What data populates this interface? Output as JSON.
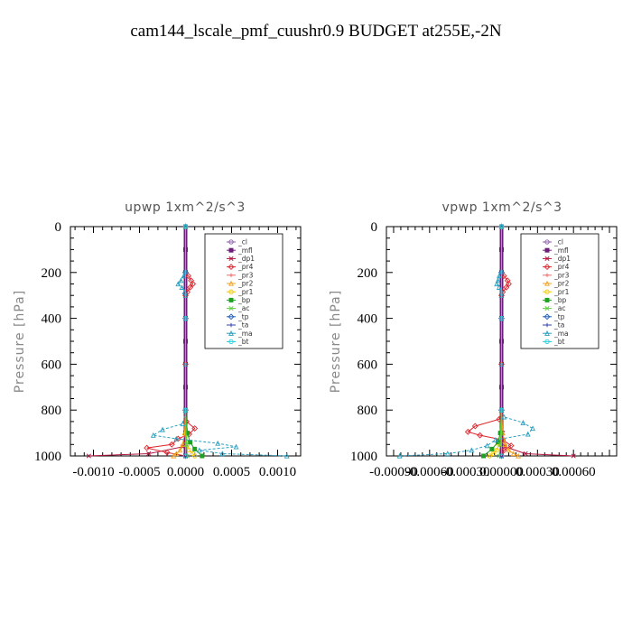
{
  "figure_title": "cam144_lscale_pmf_cuushr0.9  BUDGET at255E,-2N",
  "chart_data": [
    {
      "type": "line",
      "title": "upwp   1xm^2/s^3",
      "ylabel": "Pressure [hPa]",
      "xlabel": "",
      "xlim": [
        -0.00125,
        0.00125
      ],
      "ylim": [
        1000,
        0
      ],
      "xticks": [
        -0.001,
        -0.0005,
        0.0,
        0.0005,
        0.001
      ],
      "xtick_labels": [
        "-0.0010",
        "-0.0005",
        "0.0000",
        "0.0005",
        "0.0010"
      ],
      "yticks": [
        0,
        200,
        400,
        600,
        800,
        1000
      ],
      "ytick_labels": [
        "0",
        "200",
        "400",
        "600",
        "800",
        "1000"
      ],
      "legend_position": "upper-right",
      "series": [
        {
          "name": "_cl",
          "color": "#8a5fa8",
          "pressure": [
            0,
            200,
            400,
            600,
            800,
            1000
          ],
          "values": [
            0,
            0,
            0,
            0,
            0,
            0
          ]
        },
        {
          "name": "_mfl",
          "color": "#6b1e7a",
          "pressure": [
            0,
            100,
            200,
            300,
            400,
            500,
            600,
            700,
            800,
            900,
            1000
          ],
          "values": [
            0,
            0,
            0,
            0,
            0,
            0,
            0,
            0,
            0,
            0,
            0
          ]
        },
        {
          "name": "_dp1",
          "color": "#b0143c",
          "pressure": [
            0,
            200,
            400,
            600,
            800,
            900,
            960,
            990,
            1000
          ],
          "values": [
            0,
            0,
            0,
            0,
            0,
            2e-05,
            -3e-05,
            -0.0004,
            -0.00105
          ]
        },
        {
          "name": "_pr4",
          "color": "#e0242c",
          "pressure": [
            0,
            200,
            215,
            235,
            250,
            265,
            285,
            300,
            400,
            600,
            800,
            850,
            880,
            905,
            925,
            950,
            965,
            985,
            1000
          ],
          "values": [
            0,
            0,
            3e-05,
            6e-05,
            8e-05,
            5e-05,
            2e-05,
            0,
            0,
            0,
            0,
            1e-05,
            0.0001,
            4e-05,
            -8e-05,
            -0.00015,
            -0.00042,
            -0.0002,
            0
          ]
        },
        {
          "name": "_pr3",
          "color": "#f07070",
          "pressure": [
            0,
            400,
            800,
            1000
          ],
          "values": [
            0,
            0,
            0,
            0
          ]
        },
        {
          "name": "_pr2",
          "color": "#f5a020",
          "pressure": [
            0,
            800,
            900,
            950,
            975,
            990,
            1000
          ],
          "values": [
            0,
            0,
            -1e-05,
            -3e-05,
            -6e-05,
            -0.0001,
            -0.00013
          ]
        },
        {
          "name": "_pr1",
          "color": "#f5c800",
          "pressure": [
            0,
            800,
            900,
            950,
            975,
            990,
            1000
          ],
          "values": [
            0,
            0,
            1e-05,
            2e-05,
            4e-05,
            8e-05,
            0.0001
          ]
        },
        {
          "name": "_bp",
          "color": "#20a020",
          "pressure": [
            0,
            800,
            900,
            940,
            970,
            1000
          ],
          "values": [
            0,
            0,
            2e-05,
            5e-05,
            0.0001,
            0.00018
          ]
        },
        {
          "name": "_ac",
          "color": "#60d040",
          "pressure": [
            0,
            800,
            950,
            1000
          ],
          "values": [
            0,
            0,
            1e-05,
            2e-05
          ]
        },
        {
          "name": "_tp",
          "color": "#2060c0",
          "pressure": [
            0,
            200,
            400,
            800,
            1000
          ],
          "values": [
            0,
            0,
            0,
            0,
            0
          ]
        },
        {
          "name": "_ta",
          "color": "#3040b0",
          "pressure": [
            0,
            200,
            400,
            800,
            1000
          ],
          "values": [
            0,
            0,
            0,
            0,
            0
          ]
        },
        {
          "name": "_ma",
          "color": "#2aa0c0",
          "pressure": [
            0,
            195,
            215,
            235,
            250,
            265,
            285,
            300,
            400,
            600,
            800,
            860,
            885,
            910,
            925,
            945,
            960,
            975,
            990,
            1000
          ],
          "values": [
            0,
            0,
            -2e-05,
            -5e-05,
            -8e-05,
            -4e-05,
            -1e-05,
            0,
            0,
            0,
            0,
            -3e-05,
            -0.00025,
            -0.00035,
            -0.0001,
            0.00035,
            0.00055,
            0.00015,
            0.0004,
            0.0011
          ]
        },
        {
          "name": "_bt",
          "color": "#20d0e0",
          "pressure": [
            0,
            400,
            800,
            1000
          ],
          "values": [
            0,
            0,
            0,
            0
          ]
        }
      ]
    },
    {
      "type": "line",
      "title": "vpwp   1xm^2/s^3",
      "ylabel": "Pressure [hPa]",
      "xlabel": "",
      "xlim": [
        -0.00096,
        0.00096
      ],
      "ylim": [
        1000,
        0
      ],
      "xticks": [
        -0.0009,
        -0.0006,
        -0.0003,
        0.0,
        0.0003,
        0.0006
      ],
      "xtick_labels": [
        "-0.00090",
        "-0.00060",
        "-0.00030",
        "0.00000",
        "0.00030",
        "0.00060"
      ],
      "yticks": [
        0,
        200,
        400,
        600,
        800,
        1000
      ],
      "ytick_labels": [
        "0",
        "200",
        "400",
        "600",
        "800",
        "1000"
      ],
      "legend_position": "upper-right",
      "series": [
        {
          "name": "_cl",
          "color": "#8a5fa8",
          "pressure": [
            0,
            200,
            400,
            600,
            800,
            1000
          ],
          "values": [
            0,
            0,
            0,
            0,
            0,
            0
          ]
        },
        {
          "name": "_mfl",
          "color": "#6b1e7a",
          "pressure": [
            0,
            100,
            200,
            300,
            400,
            500,
            600,
            700,
            800,
            900,
            1000
          ],
          "values": [
            0,
            0,
            0,
            0,
            0,
            0,
            0,
            0,
            0,
            0,
            0
          ]
        },
        {
          "name": "_dp1",
          "color": "#b0143c",
          "pressure": [
            0,
            200,
            400,
            600,
            800,
            900,
            960,
            990,
            1000
          ],
          "values": [
            0,
            0,
            0,
            0,
            0,
            1e-05,
            3e-05,
            0.0002,
            0.0006
          ]
        },
        {
          "name": "_pr4",
          "color": "#e0242c",
          "pressure": [
            0,
            200,
            215,
            235,
            250,
            265,
            285,
            300,
            400,
            600,
            800,
            840,
            870,
            895,
            910,
            930,
            955,
            975,
            1000
          ],
          "values": [
            0,
            0,
            2e-05,
            5e-05,
            6e-05,
            4e-05,
            1e-05,
            0,
            0,
            0,
            0,
            -2e-05,
            -0.00022,
            -0.00028,
            -0.00018,
            1e-05,
            8e-05,
            2e-05,
            0
          ]
        },
        {
          "name": "_pr3",
          "color": "#f07070",
          "pressure": [
            0,
            400,
            800,
            1000
          ],
          "values": [
            0,
            0,
            0,
            0
          ]
        },
        {
          "name": "_pr2",
          "color": "#f5a020",
          "pressure": [
            0,
            800,
            900,
            950,
            975,
            990,
            1000
          ],
          "values": [
            0,
            0,
            1e-05,
            3e-05,
            6e-05,
            0.0001,
            0.00014
          ]
        },
        {
          "name": "_pr1",
          "color": "#f5c800",
          "pressure": [
            0,
            800,
            900,
            950,
            975,
            990,
            1000
          ],
          "values": [
            0,
            0,
            -1e-05,
            -2e-05,
            -4e-05,
            -7e-05,
            -0.0001
          ]
        },
        {
          "name": "_bp",
          "color": "#20a020",
          "pressure": [
            0,
            800,
            900,
            940,
            970,
            1000
          ],
          "values": [
            0,
            0,
            -1e-05,
            -3e-05,
            -8e-05,
            -0.00015
          ]
        },
        {
          "name": "_ac",
          "color": "#60d040",
          "pressure": [
            0,
            800,
            950,
            1000
          ],
          "values": [
            0,
            0,
            -1e-05,
            -2e-05
          ]
        },
        {
          "name": "_tp",
          "color": "#2060c0",
          "pressure": [
            0,
            200,
            400,
            800,
            1000
          ],
          "values": [
            0,
            0,
            0,
            0,
            0
          ]
        },
        {
          "name": "_ta",
          "color": "#3040b0",
          "pressure": [
            0,
            200,
            400,
            800,
            1000
          ],
          "values": [
            0,
            0,
            0,
            0,
            0
          ]
        },
        {
          "name": "_ma",
          "color": "#2aa0c0",
          "pressure": [
            0,
            195,
            215,
            235,
            250,
            265,
            285,
            300,
            400,
            600,
            800,
            830,
            855,
            880,
            905,
            930,
            955,
            975,
            990,
            1000
          ],
          "values": [
            0,
            0,
            -2e-05,
            -3e-05,
            -4e-05,
            -2e-05,
            0,
            0,
            0,
            0,
            0,
            2e-05,
            0.00018,
            0.00026,
            0.00022,
            -5e-05,
            -0.00012,
            -0.00025,
            -0.00045,
            -0.00085
          ]
        },
        {
          "name": "_bt",
          "color": "#20d0e0",
          "pressure": [
            0,
            400,
            800,
            1000
          ],
          "values": [
            0,
            0,
            0,
            0
          ]
        }
      ]
    }
  ]
}
